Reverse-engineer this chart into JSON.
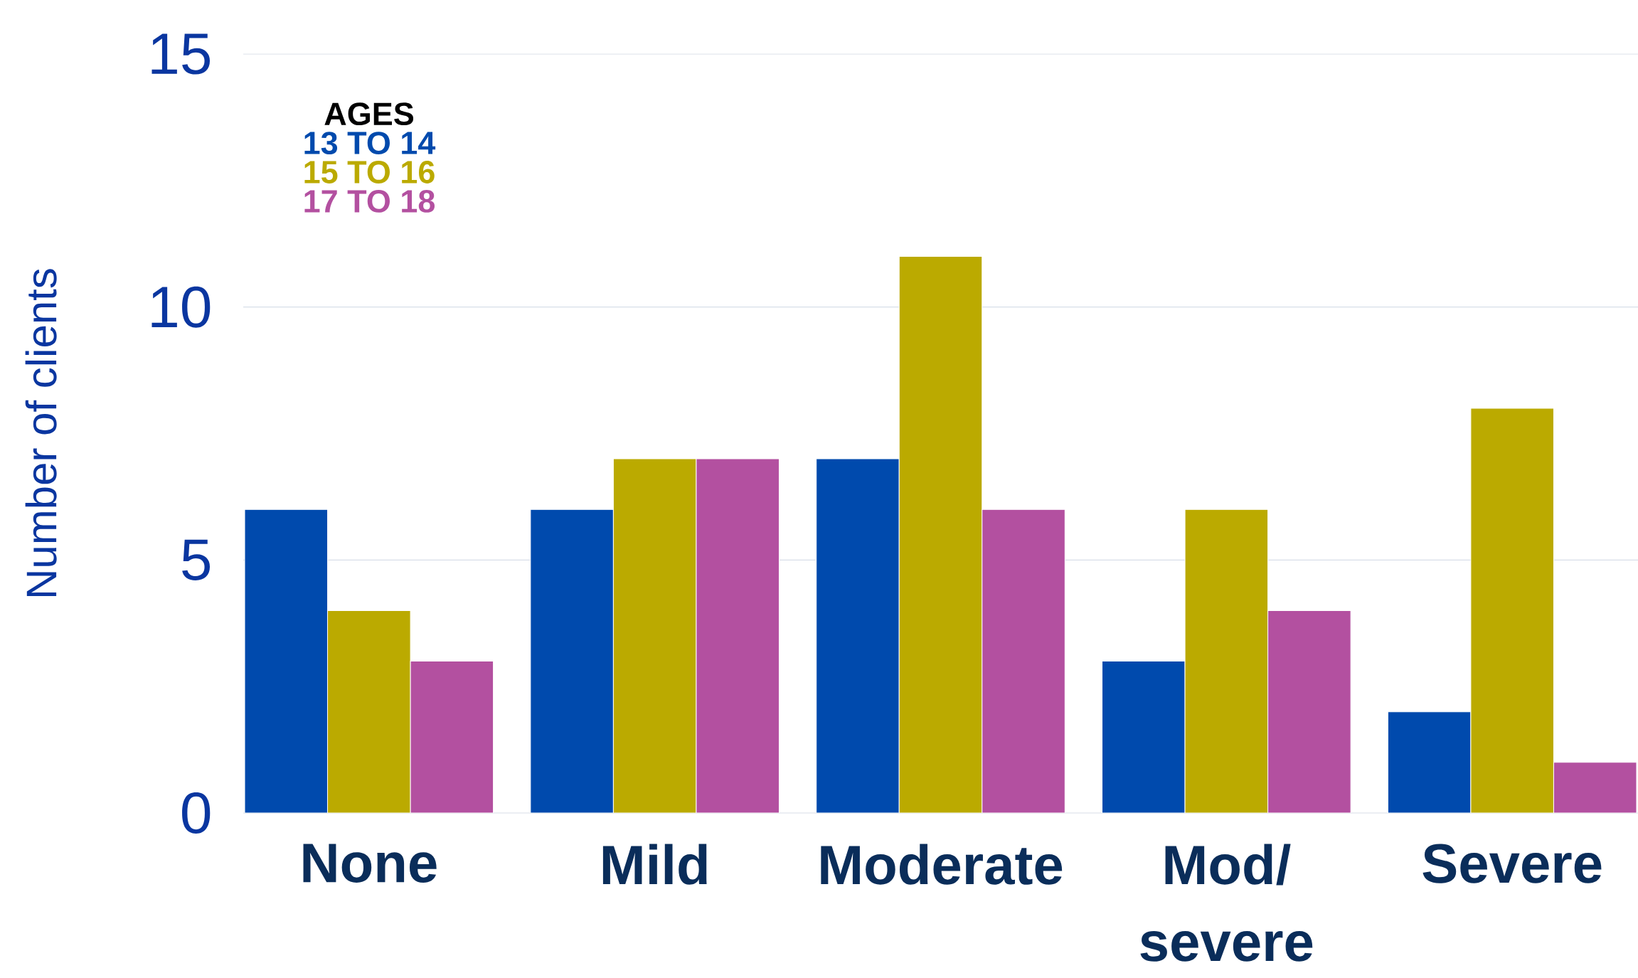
{
  "chart_data": {
    "type": "bar",
    "ylabel": "Number of clients",
    "legend_title": "AGES",
    "categories": [
      "None",
      "Mild",
      "Moderate",
      "Mod/ severe",
      "Severe"
    ],
    "series": [
      {
        "name": "13 TO 14",
        "color": "#004aad",
        "values": [
          6,
          6,
          7,
          3,
          2
        ]
      },
      {
        "name": "15 TO 16",
        "color": "#bbaa00",
        "values": [
          4,
          7,
          11,
          6,
          8
        ]
      },
      {
        "name": "17 TO 18",
        "color": "#b350a0",
        "values": [
          3,
          7,
          6,
          4,
          1
        ]
      }
    ],
    "ylim": [
      0,
      15
    ],
    "yticks": [
      0,
      5,
      10,
      15
    ],
    "grid": "y",
    "legend": "top left"
  }
}
